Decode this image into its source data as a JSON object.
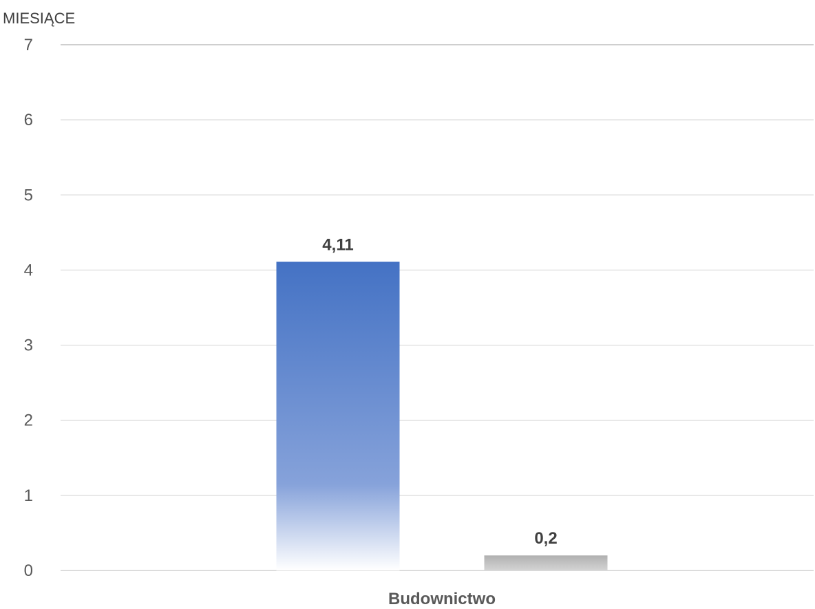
{
  "chart_data": {
    "type": "bar",
    "ylabel": "MIESIĄCE",
    "xlabel": "",
    "categories": [
      "Budownictwo"
    ],
    "ylim": [
      0,
      7
    ],
    "yticks": [
      "0",
      "1",
      "2",
      "3",
      "4",
      "5",
      "6",
      "7"
    ],
    "grid": true,
    "legend": "none",
    "series": [
      {
        "values": [
          4.11
        ],
        "label": "4,11",
        "color": "#4472c4",
        "fill": "gradient-fade-to-white"
      },
      {
        "values": [
          0.2
        ],
        "label": "0,2",
        "color": "#a5a5a5",
        "fill": "gradient"
      }
    ]
  }
}
